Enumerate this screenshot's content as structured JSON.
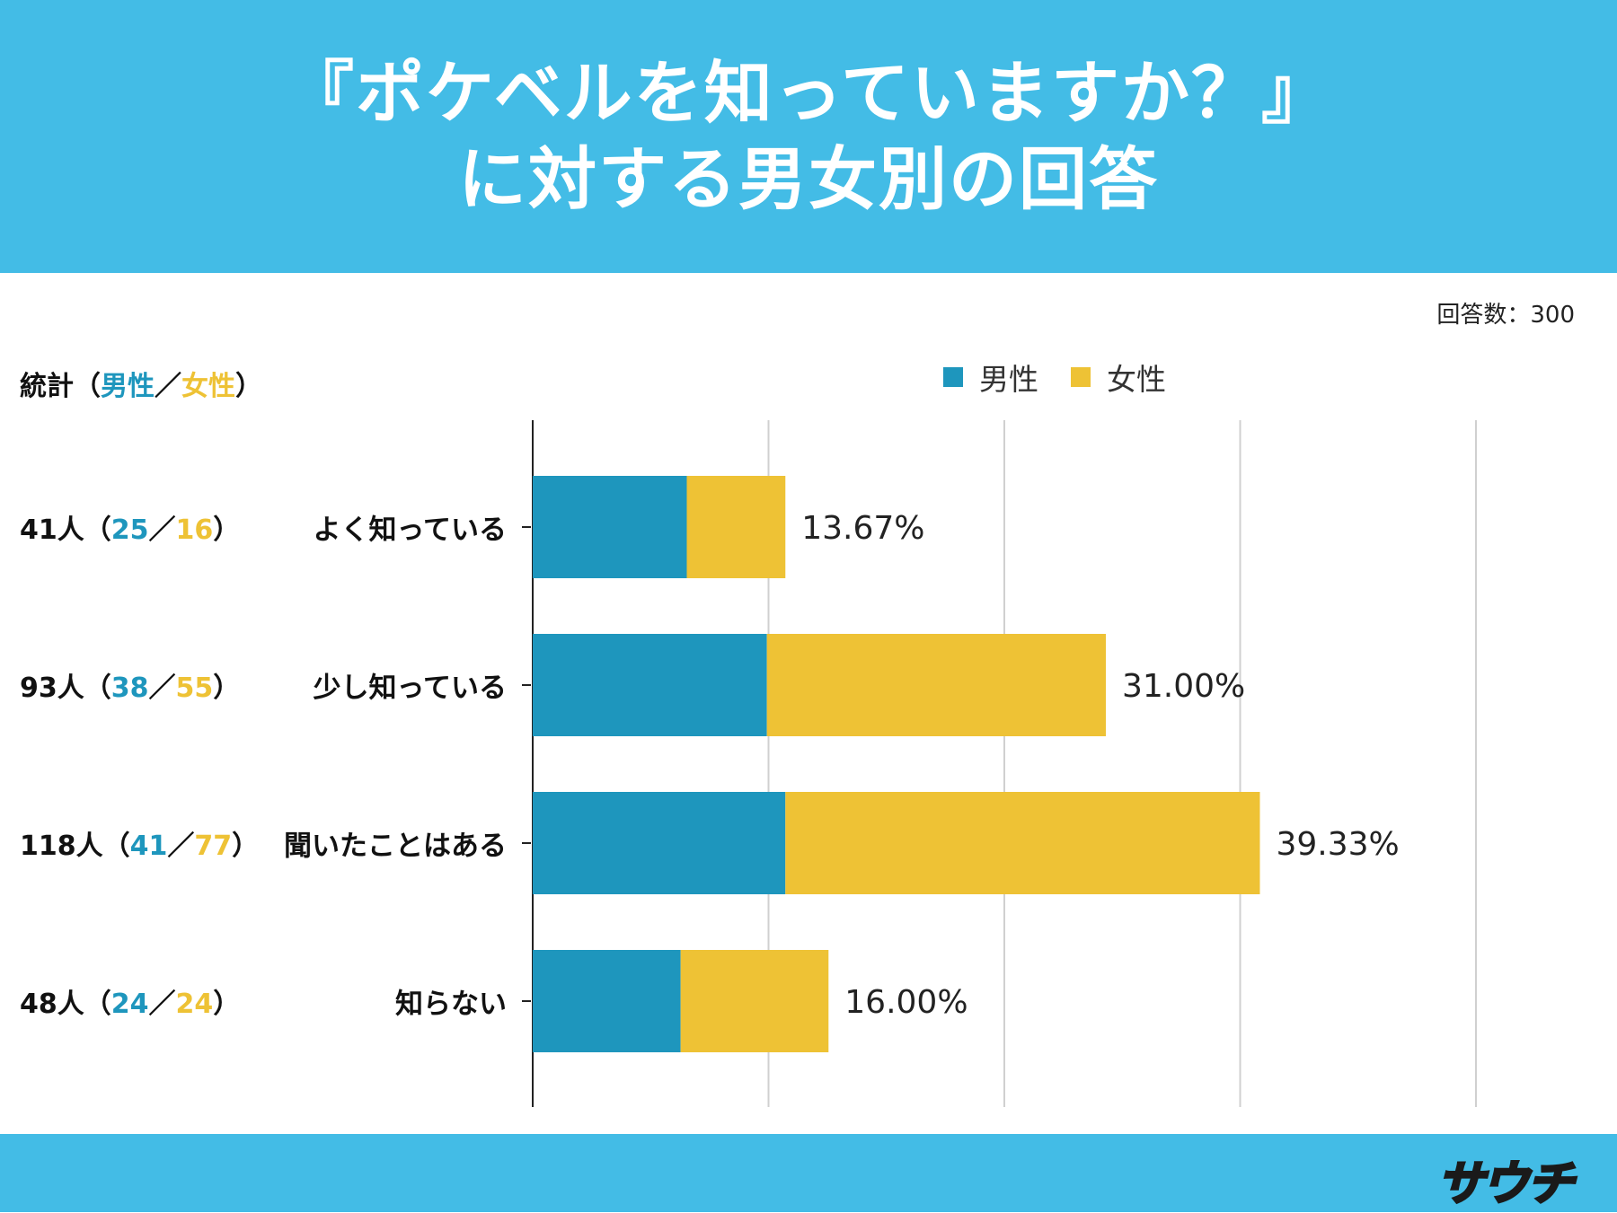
{
  "header": {
    "title_line1": "『ポケベルを知っていますか？』",
    "title_line2": "に対する男女別の回答"
  },
  "response_count": "回答数：300",
  "stats_header": {
    "prefix": "統計（",
    "male": "男性",
    "sep": "／",
    "female": "女性",
    "suffix": "）"
  },
  "legend": {
    "male": "男性",
    "female": "女性"
  },
  "colors": {
    "male": "#1e96bd",
    "female": "#eec235",
    "header": "#43bce6"
  },
  "rows": [
    {
      "total": "41人（",
      "male": "25",
      "sep": "／",
      "female": "16",
      "close": "）",
      "category": "よく知っている"
    },
    {
      "total": "93人（",
      "male": "38",
      "sep": "／",
      "female": "55",
      "close": "）",
      "category": "少し知っている"
    },
    {
      "total": "118人（",
      "male": "41",
      "sep": "／",
      "female": "77",
      "close": "）",
      "category": "聞いたことはある"
    },
    {
      "total": "48人（",
      "male": "24",
      "sep": "／",
      "female": "24",
      "close": "）",
      "category": "知らない"
    }
  ],
  "chart_data": {
    "type": "bar",
    "orientation": "horizontal",
    "stacked": true,
    "categories": [
      "よく知っている",
      "少し知っている",
      "聞いたことはある",
      "知らない"
    ],
    "series": [
      {
        "name": "男性",
        "values": [
          25,
          38,
          41,
          24
        ]
      },
      {
        "name": "女性",
        "values": [
          16,
          55,
          77,
          24
        ]
      }
    ],
    "data_labels": [
      "13.67%",
      "31.00%",
      "39.33%",
      "16.00%"
    ],
    "xlim": [
      0,
      128
    ],
    "grid": true,
    "legend_position": "top"
  },
  "logo_text": "サウチ"
}
